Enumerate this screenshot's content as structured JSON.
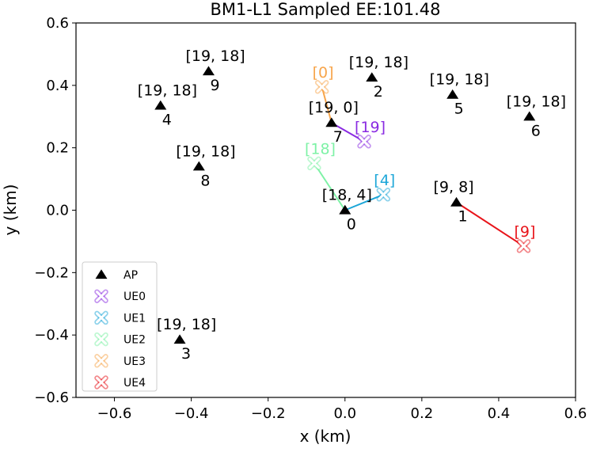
{
  "chart_data": {
    "type": "scatter",
    "title": "BM1-L1 Sampled EE:101.48",
    "xlabel": "x (km)",
    "ylabel": "y (km)",
    "xlim": [
      -0.7,
      0.6
    ],
    "ylim": [
      -0.6,
      0.6
    ],
    "xticks": [
      -0.6,
      -0.4,
      -0.2,
      0.0,
      0.2,
      0.4,
      0.6
    ],
    "yticks": [
      -0.6,
      -0.4,
      -0.2,
      0.0,
      0.2,
      0.4,
      0.6
    ],
    "xtick_labels": [
      "−0.6",
      "−0.4",
      "−0.2",
      "0.0",
      "0.2",
      "0.4",
      "0.6"
    ],
    "ytick_labels": [
      "−0.6",
      "−0.4",
      "−0.2",
      "0.0",
      "0.2",
      "0.4",
      "0.6"
    ],
    "grid": false,
    "legend_position": "lower-left",
    "access_points": [
      {
        "id": "0",
        "x": 0.0,
        "y": 0.0,
        "label": "[18, 4]"
      },
      {
        "id": "1",
        "x": 0.29,
        "y": 0.025,
        "label": "[9, 8]"
      },
      {
        "id": "2",
        "x": 0.07,
        "y": 0.425,
        "label": "[19, 18]"
      },
      {
        "id": "3",
        "x": -0.43,
        "y": -0.415,
        "label": "[19, 18]"
      },
      {
        "id": "4",
        "x": -0.48,
        "y": 0.335,
        "label": "[19, 18]"
      },
      {
        "id": "5",
        "x": 0.28,
        "y": 0.37,
        "label": "[19, 18]"
      },
      {
        "id": "6",
        "x": 0.48,
        "y": 0.3,
        "label": "[19, 18]"
      },
      {
        "id": "7",
        "x": -0.035,
        "y": 0.28,
        "label": "[19, 0]"
      },
      {
        "id": "8",
        "x": -0.38,
        "y": 0.14,
        "label": "[19, 18]"
      },
      {
        "id": "9",
        "x": -0.355,
        "y": 0.445,
        "label": "[19, 18]"
      }
    ],
    "user_equipment": [
      {
        "name": "UE0",
        "x": 0.05,
        "y": 0.22,
        "ap": "7",
        "label": "[19]",
        "color": "#8a2be2"
      },
      {
        "name": "UE1",
        "x": 0.1,
        "y": 0.05,
        "ap": "0",
        "label": "[4]",
        "color": "#1ca6d8"
      },
      {
        "name": "UE2",
        "x": -0.08,
        "y": 0.15,
        "ap": "0",
        "label": "[18]",
        "color": "#7ef2a6"
      },
      {
        "name": "UE3",
        "x": -0.06,
        "y": 0.395,
        "ap": "7",
        "label": "[0]",
        "color": "#f7a54b"
      },
      {
        "name": "UE4",
        "x": 0.465,
        "y": -0.115,
        "ap": "1",
        "label": "[9]",
        "color": "#e8141a"
      }
    ],
    "legend": [
      "AP",
      "UE0",
      "UE1",
      "UE2",
      "UE3",
      "UE4"
    ]
  }
}
